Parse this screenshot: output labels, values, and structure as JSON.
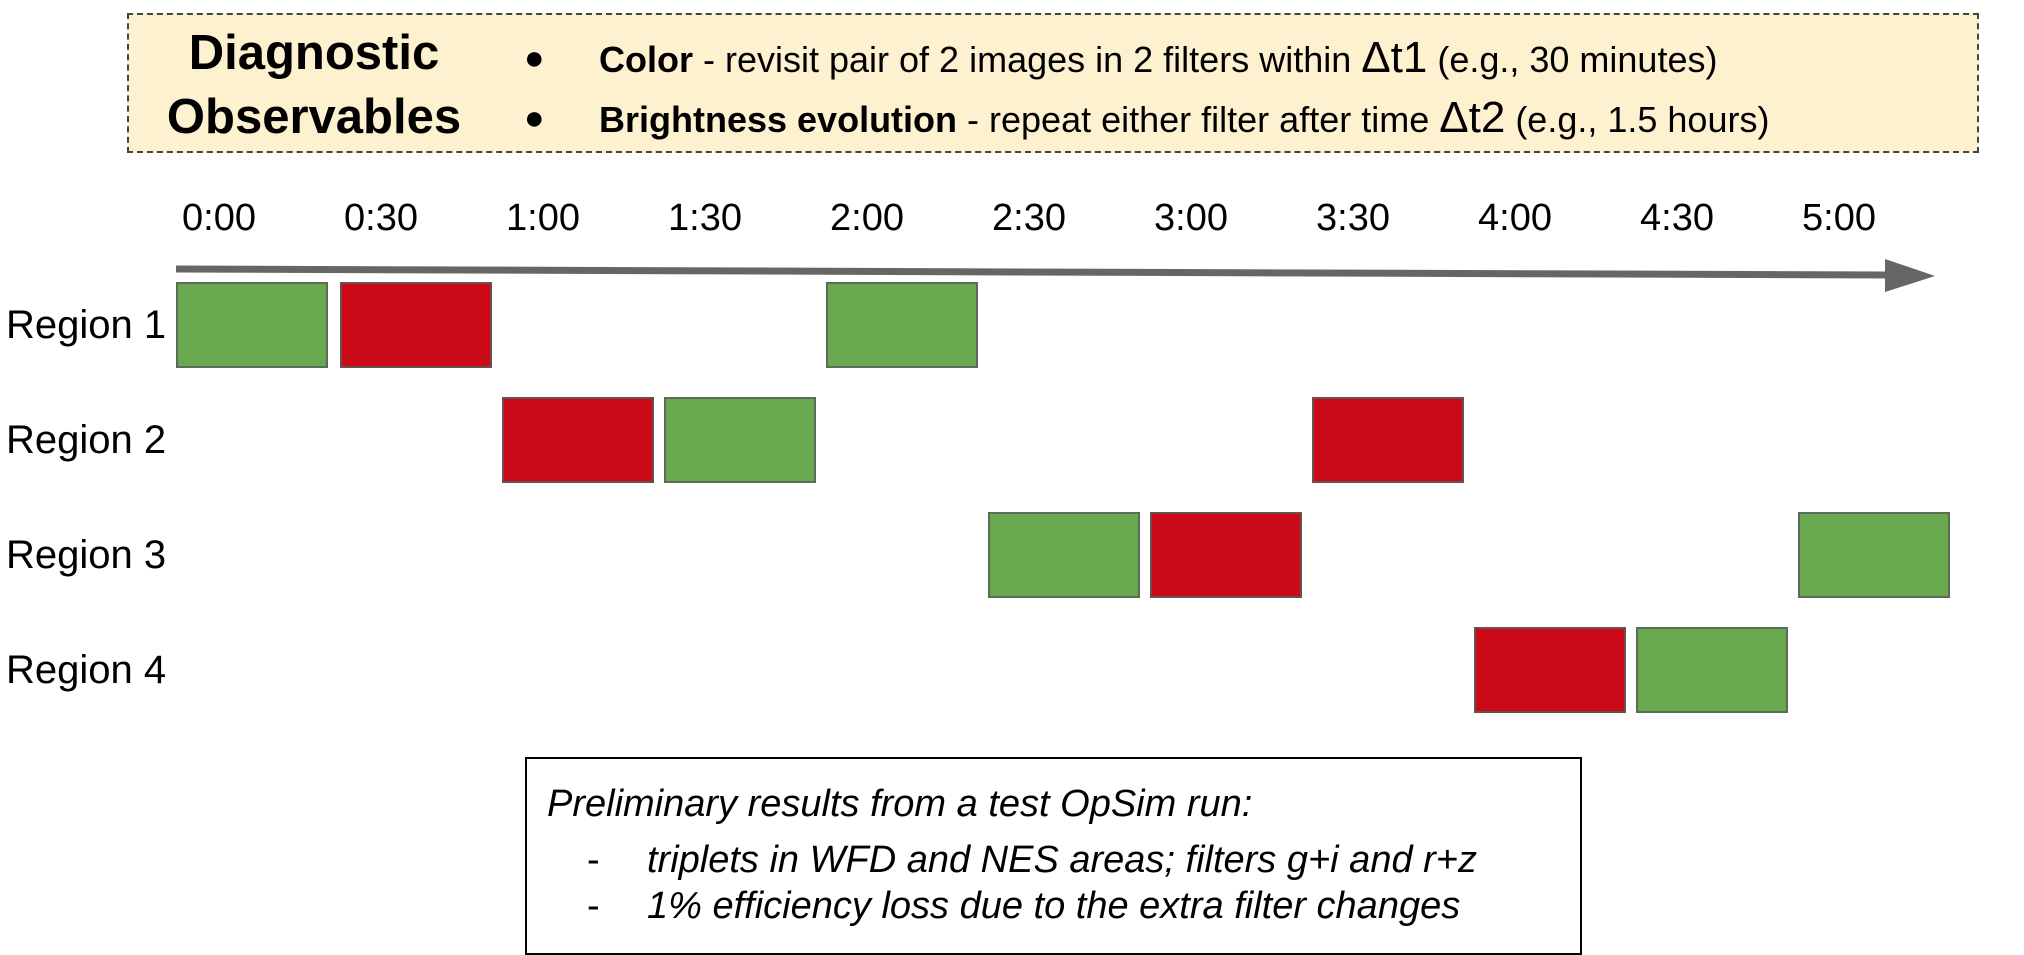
{
  "diagnostic": {
    "title_line1": "Diagnostic",
    "title_line2": "Observables",
    "items": [
      {
        "bullet": "●",
        "bold": "Color",
        "text_before_delta": " - revisit pair of 2 images in 2 filters within ",
        "delta": "Δt1",
        "text_after_delta": " (e.g., 30 minutes)"
      },
      {
        "bullet": "●",
        "bold": "Brightness evolution",
        "text_before_delta": " - repeat either filter after time ",
        "delta": "Δt2",
        "text_after_delta": "  (e.g., 1.5 hours)"
      }
    ]
  },
  "timeline": {
    "ticks": [
      "0:00",
      "0:30",
      "1:00",
      "1:30",
      "2:00",
      "2:30",
      "3:00",
      "3:30",
      "4:00",
      "4:30",
      "5:00"
    ],
    "regions": [
      "Region 1",
      "Region 2",
      "Region 3",
      "Region 4"
    ],
    "colors": {
      "green": "#6aa84f",
      "red": "#cc0a17",
      "axis": "#666666"
    },
    "observations": [
      {
        "region": 0,
        "start_slot": 0,
        "color": "green"
      },
      {
        "region": 0,
        "start_slot": 1,
        "color": "red"
      },
      {
        "region": 0,
        "start_slot": 4,
        "color": "green"
      },
      {
        "region": 1,
        "start_slot": 2,
        "color": "red"
      },
      {
        "region": 1,
        "start_slot": 3,
        "color": "green"
      },
      {
        "region": 1,
        "start_slot": 7,
        "color": "red"
      },
      {
        "region": 2,
        "start_slot": 5,
        "color": "green"
      },
      {
        "region": 2,
        "start_slot": 6,
        "color": "red"
      },
      {
        "region": 2,
        "start_slot": 10,
        "color": "green"
      },
      {
        "region": 3,
        "start_slot": 8,
        "color": "red"
      },
      {
        "region": 3,
        "start_slot": 9,
        "color": "green"
      }
    ]
  },
  "note": {
    "title": "Preliminary results from a test OpSim run:",
    "dash": "-",
    "lines": [
      "triplets in WFD and NES areas; filters g+i and r+z",
      "1% efficiency loss due to the extra filter changes"
    ]
  }
}
